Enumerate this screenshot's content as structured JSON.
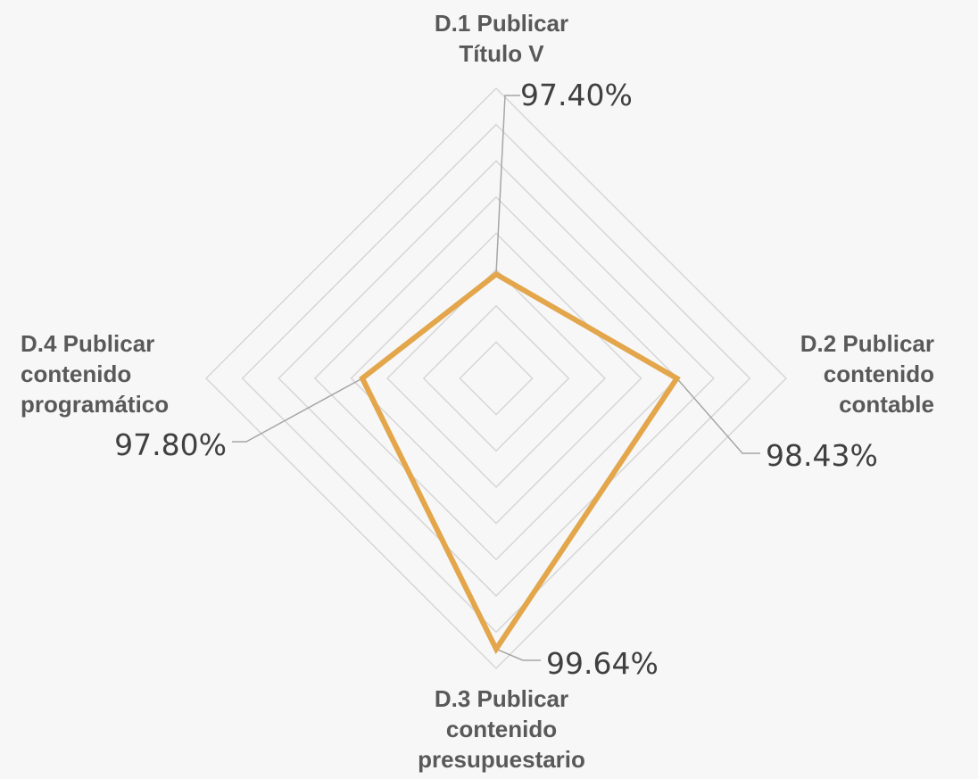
{
  "chart_data": {
    "type": "radar",
    "title": "",
    "categories": [
      [
        "D.1 Publicar",
        "Título V"
      ],
      [
        "D.2 Publicar",
        "contenido",
        "contable"
      ],
      [
        "D.3 Publicar",
        "contenido",
        "presupuestario"
      ],
      [
        "D.4 Publicar",
        "contenido",
        "programático"
      ]
    ],
    "series": [
      {
        "values": [
          97.4,
          98.43,
          99.64,
          97.8
        ],
        "value_labels": [
          "97.40%",
          "98.43%",
          "99.64%",
          "97.80%"
        ],
        "color": "#e3a64b"
      }
    ],
    "range": [
      96.0,
      99.9
    ],
    "grid_levels": 8,
    "grid": true,
    "legend": "none"
  }
}
